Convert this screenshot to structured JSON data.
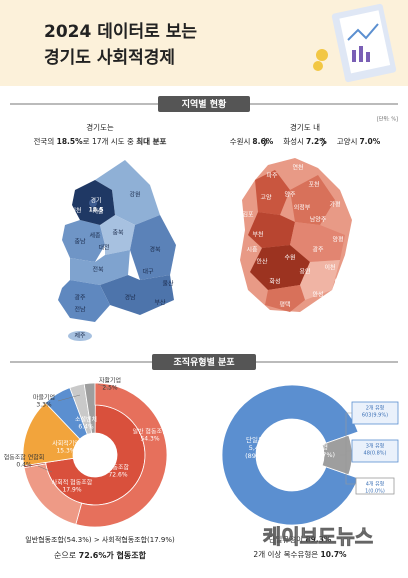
{
  "header": {
    "title_lines": [
      "2024 데이터로 보는",
      "경기도 사회적경제"
    ]
  },
  "region_section": {
    "title": "지역별 현황",
    "unit": "[단위: %]",
    "national": {
      "heading": "경기도는",
      "line": [
        {
          "text": "전국의 ",
          "bold": false
        },
        {
          "text": "18.5%",
          "bold": true
        },
        {
          "text": "로 17개 시도 중 ",
          "bold": false
        },
        {
          "text": "최대 분포",
          "bold": true
        }
      ],
      "highlight": {
        "name": "경기",
        "value": 18.5
      },
      "regions": [
        "서울",
        "인천",
        "강원",
        "충남",
        "세종",
        "충북",
        "대전",
        "경북",
        "전북",
        "대구",
        "울산",
        "광주",
        "부산",
        "경남",
        "전남",
        "제주"
      ]
    },
    "province": {
      "heading": "경기도 내",
      "ranking": [
        {
          "name": "수원시",
          "value_label": "8.6%"
        },
        {
          "name": "화성시",
          "value_label": "7.2%"
        },
        {
          "name": "고양시",
          "value_label": "7.0%"
        }
      ],
      "regions": [
        "고양",
        "파주",
        "연천",
        "포천",
        "가평",
        "양주",
        "의정부",
        "남양주",
        "양평",
        "광주",
        "이천",
        "여주",
        "용인",
        "안성",
        "평택",
        "화성",
        "수원",
        "안산",
        "시흥",
        "부천",
        "김포"
      ]
    }
  },
  "org_section": {
    "title": "조직유형별 분포",
    "sunburst": {
      "inner": [
        {
          "name": "협동조합",
          "value": 72.6,
          "value_label": "72.6%",
          "color": "#d9503c"
        },
        {
          "name": "사회적기업",
          "value": 15.3,
          "value_label": "15.3%",
          "color": "#f2a43c"
        },
        {
          "name": "소셜벤처",
          "value": 6.4,
          "value_label": "6.4%",
          "color": "#5b8fd0"
        },
        {
          "name": "마을기업",
          "value": 3.3,
          "value_label": "3.3%",
          "color": "#c9c9c9"
        },
        {
          "name": "자활기업",
          "value": 2.5,
          "value_label": "2.5%",
          "color": "#9e9e9e"
        }
      ],
      "outer": [
        {
          "name": "일반 협동조합",
          "value": 54.3,
          "value_label": "54.3%",
          "color": "#e6705c"
        },
        {
          "name": "사회적 협동조합",
          "value": 17.9,
          "value_label": "17.9%",
          "color": "#ee9a86"
        },
        {
          "name": "협동조합 연합회",
          "value": 0.4,
          "value_label": "0.4%",
          "color": "#b03a2a"
        }
      ],
      "caption": [
        [
          {
            "text": "일반협동조합(54.3%) > 사회적협동조합(17.9%)",
            "bold": false
          }
        ],
        [
          {
            "text": "순으로 ",
            "bold": false
          },
          {
            "text": "72.6%",
            "bold": true
          },
          {
            "text": "가 협동조합",
            "bold": true
          }
        ]
      ]
    },
    "donut": {
      "segments": [
        {
          "name": "단일유형",
          "count_label": "5,457",
          "value": 89.3,
          "value_label": "(89.3%)",
          "color": "#5b8fd0"
        },
        {
          "name": "복수유형",
          "count_label": "652",
          "value": 10.7,
          "value_label": "(10.7%)",
          "color": "#9e9e9e"
        }
      ],
      "breakdown": [
        {
          "name": "2개 유형",
          "label": "603(9.9%)"
        },
        {
          "name": "3개 유형",
          "label": "48(0.8%)"
        },
        {
          "name": "4개 유형",
          "label": "1(0.0%)"
        }
      ],
      "caption": [
        [
          {
            "text": "단일유형이 ",
            "bold": false
          },
          {
            "text": "89.3%",
            "bold": true
          }
        ],
        [
          {
            "text": "2개 이상 복수유형은 ",
            "bold": false
          },
          {
            "text": "10.7%",
            "bold": true
          }
        ]
      ]
    }
  },
  "watermark": "케이보도뉴스"
}
